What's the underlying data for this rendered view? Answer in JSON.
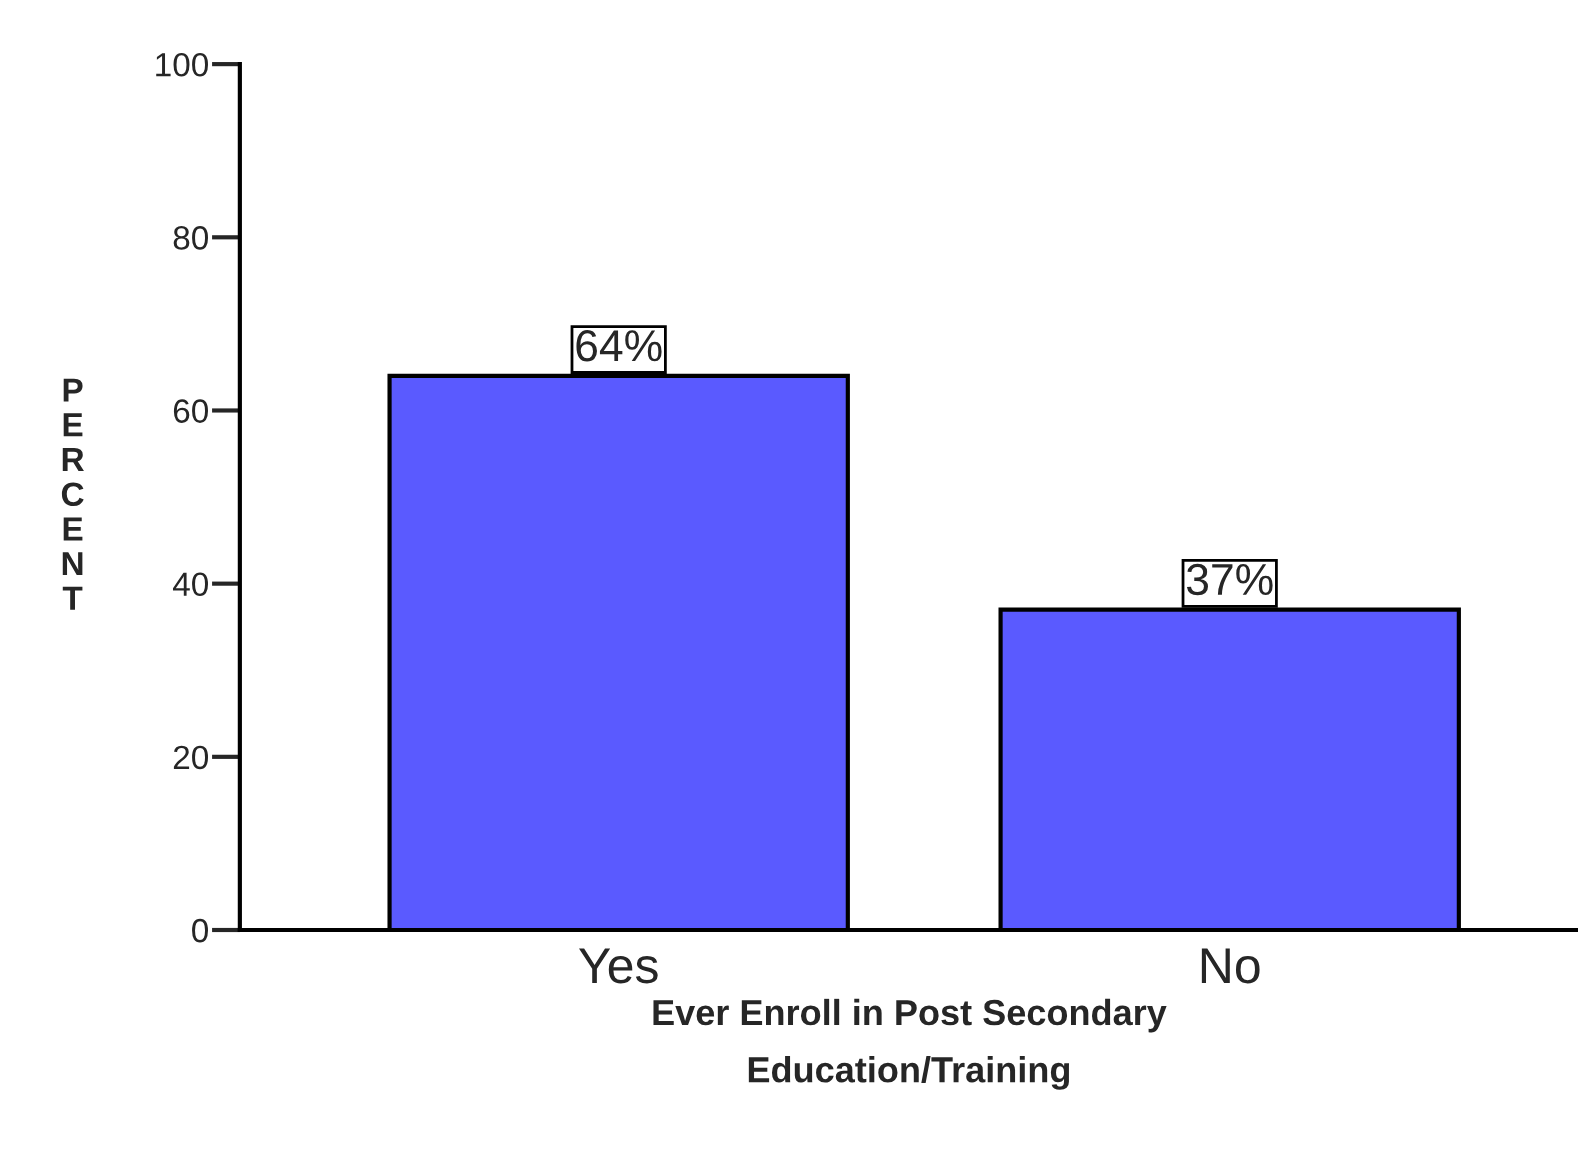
{
  "chart_data": {
    "type": "bar",
    "categories": [
      "Yes",
      "No"
    ],
    "values": [
      64,
      37
    ],
    "value_labels": [
      "64%",
      "37%"
    ],
    "color": "#5a5aff",
    "xlabel": "Ever Enroll in Post Secondary\nEducation/Training",
    "ylabel": "PERCENT",
    "ylim": [
      0,
      100
    ],
    "yticks": [
      0,
      20,
      40,
      60,
      80,
      100
    ],
    "grid": false,
    "legend": false
  }
}
